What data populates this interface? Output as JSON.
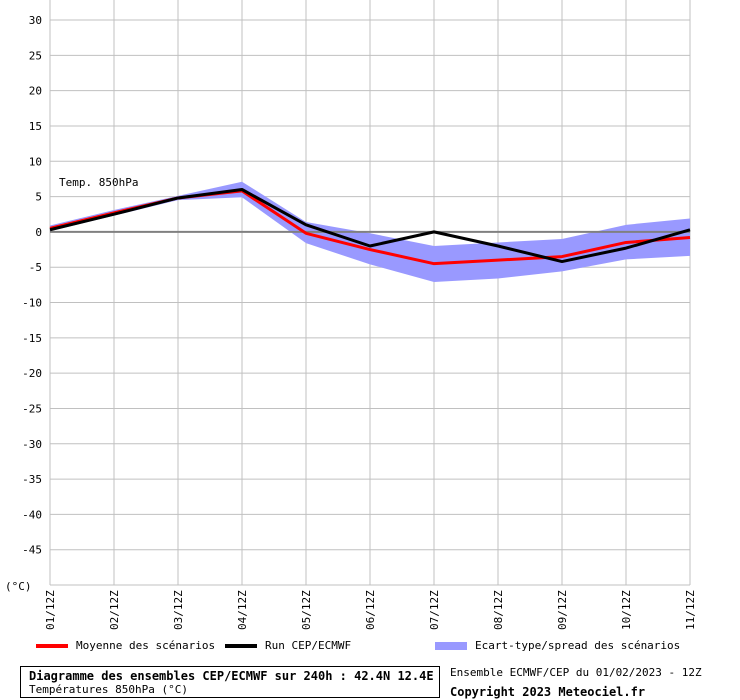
{
  "chart_data": {
    "type": "line",
    "annotation": "Temp. 850hPa",
    "ylabel": "(°C)",
    "ylim": [
      -50,
      30
    ],
    "yticks": [
      30,
      25,
      20,
      15,
      10,
      5,
      0,
      -5,
      -10,
      -15,
      -20,
      -25,
      -30,
      -35,
      -40,
      -45
    ],
    "categories": [
      "01/12Z",
      "02/12Z",
      "03/12Z",
      "04/12Z",
      "05/12Z",
      "06/12Z",
      "07/12Z",
      "08/12Z",
      "09/12Z",
      "10/12Z",
      "11/12Z"
    ],
    "grid": true,
    "series": [
      {
        "name": "Moyenne des scénarios",
        "color": "#ff0000",
        "values": [
          0.5,
          2.7,
          4.8,
          5.8,
          -0.2,
          -2.5,
          -4.5,
          -4.0,
          -3.5,
          -1.5,
          -0.8
        ]
      },
      {
        "name": "Run CEP/ECMWF",
        "color": "#000000",
        "values": [
          0.3,
          2.5,
          4.8,
          6.0,
          1.0,
          -2.0,
          0.0,
          -2.0,
          -4.2,
          -2.3,
          0.3
        ]
      }
    ],
    "spread": {
      "name": "Ecart-type/spread des scénarios",
      "color": "#9999ff",
      "upper": [
        0.9,
        3.1,
        5.1,
        7.1,
        1.4,
        -0.2,
        -2.0,
        -1.5,
        -1.0,
        1.0,
        1.9
      ],
      "lower": [
        0.1,
        2.3,
        4.5,
        4.9,
        -1.6,
        -4.6,
        -7.1,
        -6.6,
        -5.6,
        -3.9,
        -3.4
      ]
    }
  },
  "legend": {
    "mean_label": "Moyenne des scénarios",
    "run_label": "Run CEP/ECMWF",
    "spread_label": "Ecart-type/spread des scénarios"
  },
  "title_box": {
    "line1": "Diagramme des ensembles CEP/ECMWF sur 240h : 42.4N 12.4E",
    "line2": "Températures 850hPa (°C)"
  },
  "footer": {
    "line1": "Ensemble ECMWF/CEP du 01/02/2023 - 12Z",
    "line2": "Copyright 2023 Meteociel.fr"
  }
}
